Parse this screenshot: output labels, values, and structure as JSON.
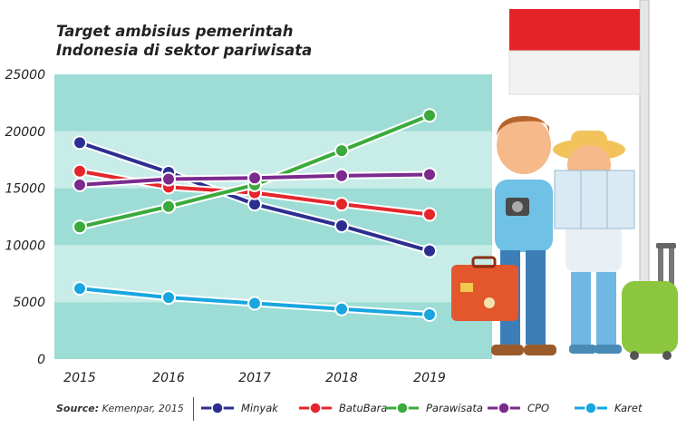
{
  "title_lines": [
    "Target ambisius pemerintah",
    "Indonesia di sektor pariwisata"
  ],
  "source_label": "Source:",
  "source_text": "Kemenpar, 2015",
  "chart_data": {
    "type": "line",
    "categories": [
      "2015",
      "2016",
      "2017",
      "2018",
      "2019"
    ],
    "ylim": [
      0,
      25000
    ],
    "yticks": [
      "25000",
      "20000",
      "15000",
      "10000",
      "5000",
      "0"
    ],
    "series": [
      {
        "name": "Minyak",
        "color": "#2b2f8f",
        "values": [
          19000,
          16400,
          13600,
          11700,
          9500
        ]
      },
      {
        "name": "BatuBara",
        "color": "#e4262c",
        "values": [
          16500,
          15100,
          14600,
          13600,
          12700
        ]
      },
      {
        "name": "Parawisata",
        "color": "#3aaa3c",
        "values": [
          11600,
          13400,
          15300,
          18300,
          21400
        ]
      },
      {
        "name": "CPO",
        "color": "#7b2a8e",
        "values": [
          15300,
          15800,
          15900,
          16100,
          16200
        ]
      },
      {
        "name": "Karet",
        "color": "#19a6e0",
        "values": [
          6200,
          5400,
          4900,
          4400,
          3900
        ]
      }
    ],
    "grid": true,
    "legend_position": "bottom"
  }
}
